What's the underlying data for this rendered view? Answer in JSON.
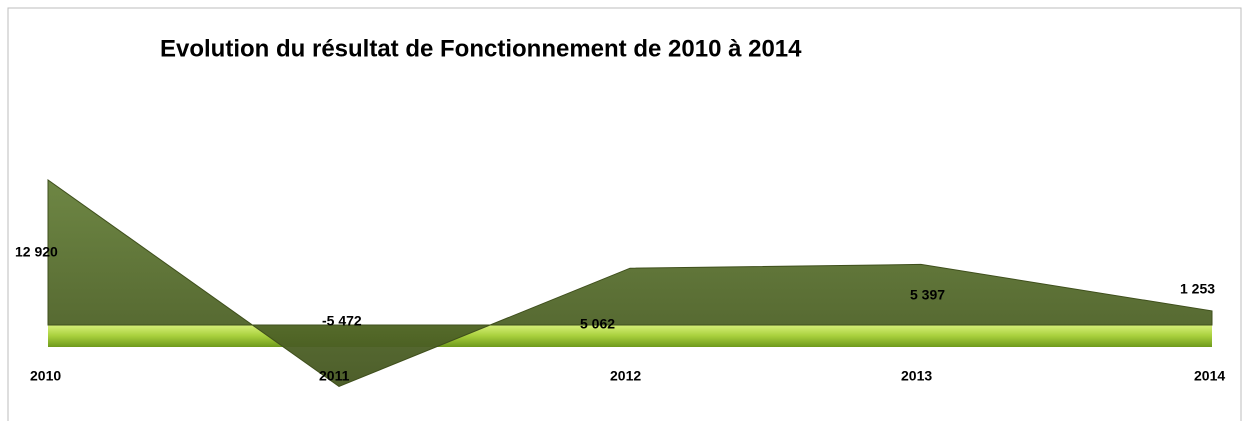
{
  "chart_data": {
    "type": "area",
    "title": "Evolution du résultat de Fonctionnement de  2010 à 2014",
    "categories": [
      "2010",
      "2011",
      "2012",
      "2013",
      "2014"
    ],
    "values": [
      12920,
      -5472,
      5062,
      5397,
      1253
    ],
    "value_labels": [
      "12 920",
      "-5 472",
      "5 062",
      "5 397",
      "1 253"
    ],
    "color": "#5a6e2c"
  }
}
